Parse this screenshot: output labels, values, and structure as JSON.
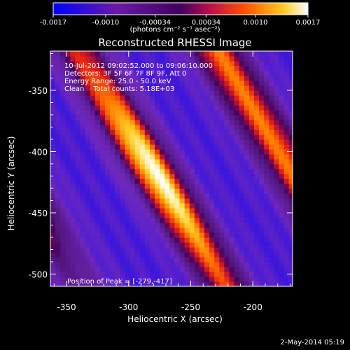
{
  "chart_data": {
    "type": "heatmap",
    "title": "Reconstructed RHESSI Image",
    "xlabel": "Heliocentric X (arcsec)",
    "ylabel": "Heliocentric Y (arcsec)",
    "xlim": [
      -363,
      -168
    ],
    "ylim": [
      -510,
      -318
    ],
    "xticks": [
      "-350",
      "-300",
      "-250",
      "-200"
    ],
    "xtick_values": [
      -350,
      -300,
      -250,
      -200
    ],
    "yticks": [
      "-350",
      "-400",
      "-450",
      "-500"
    ],
    "ytick_values": [
      -350,
      -400,
      -450,
      -500
    ],
    "colorbar": {
      "min": -0.0017,
      "max": 0.0017,
      "ticks": [
        "-0.0017",
        "-0.0010",
        "-0.00034",
        "0.00034",
        "0.0010",
        "0.0017"
      ],
      "tick_values": [
        -0.0017,
        -0.001,
        -0.00034,
        0.00034,
        0.001,
        0.0017
      ],
      "label": "(photons cm⁻² s⁻¹ asec⁻²)"
    },
    "annotations": [
      "10-Jul-2012 09:02:52.000 to 09:06:10.000",
      "Detectors: 3F 5F 6F 7F 8F 9F, Att 0",
      "Energy Range: 25.0 - 50.0 keV",
      "Clean    Total counts: 5.18E+03"
    ],
    "peak_text": "Position of Peak = [-279,-417]",
    "peak": [
      -279,
      -417
    ],
    "peak_value": 0.0017,
    "grid": false
  },
  "timestamp": "2-May-2014 05:19"
}
